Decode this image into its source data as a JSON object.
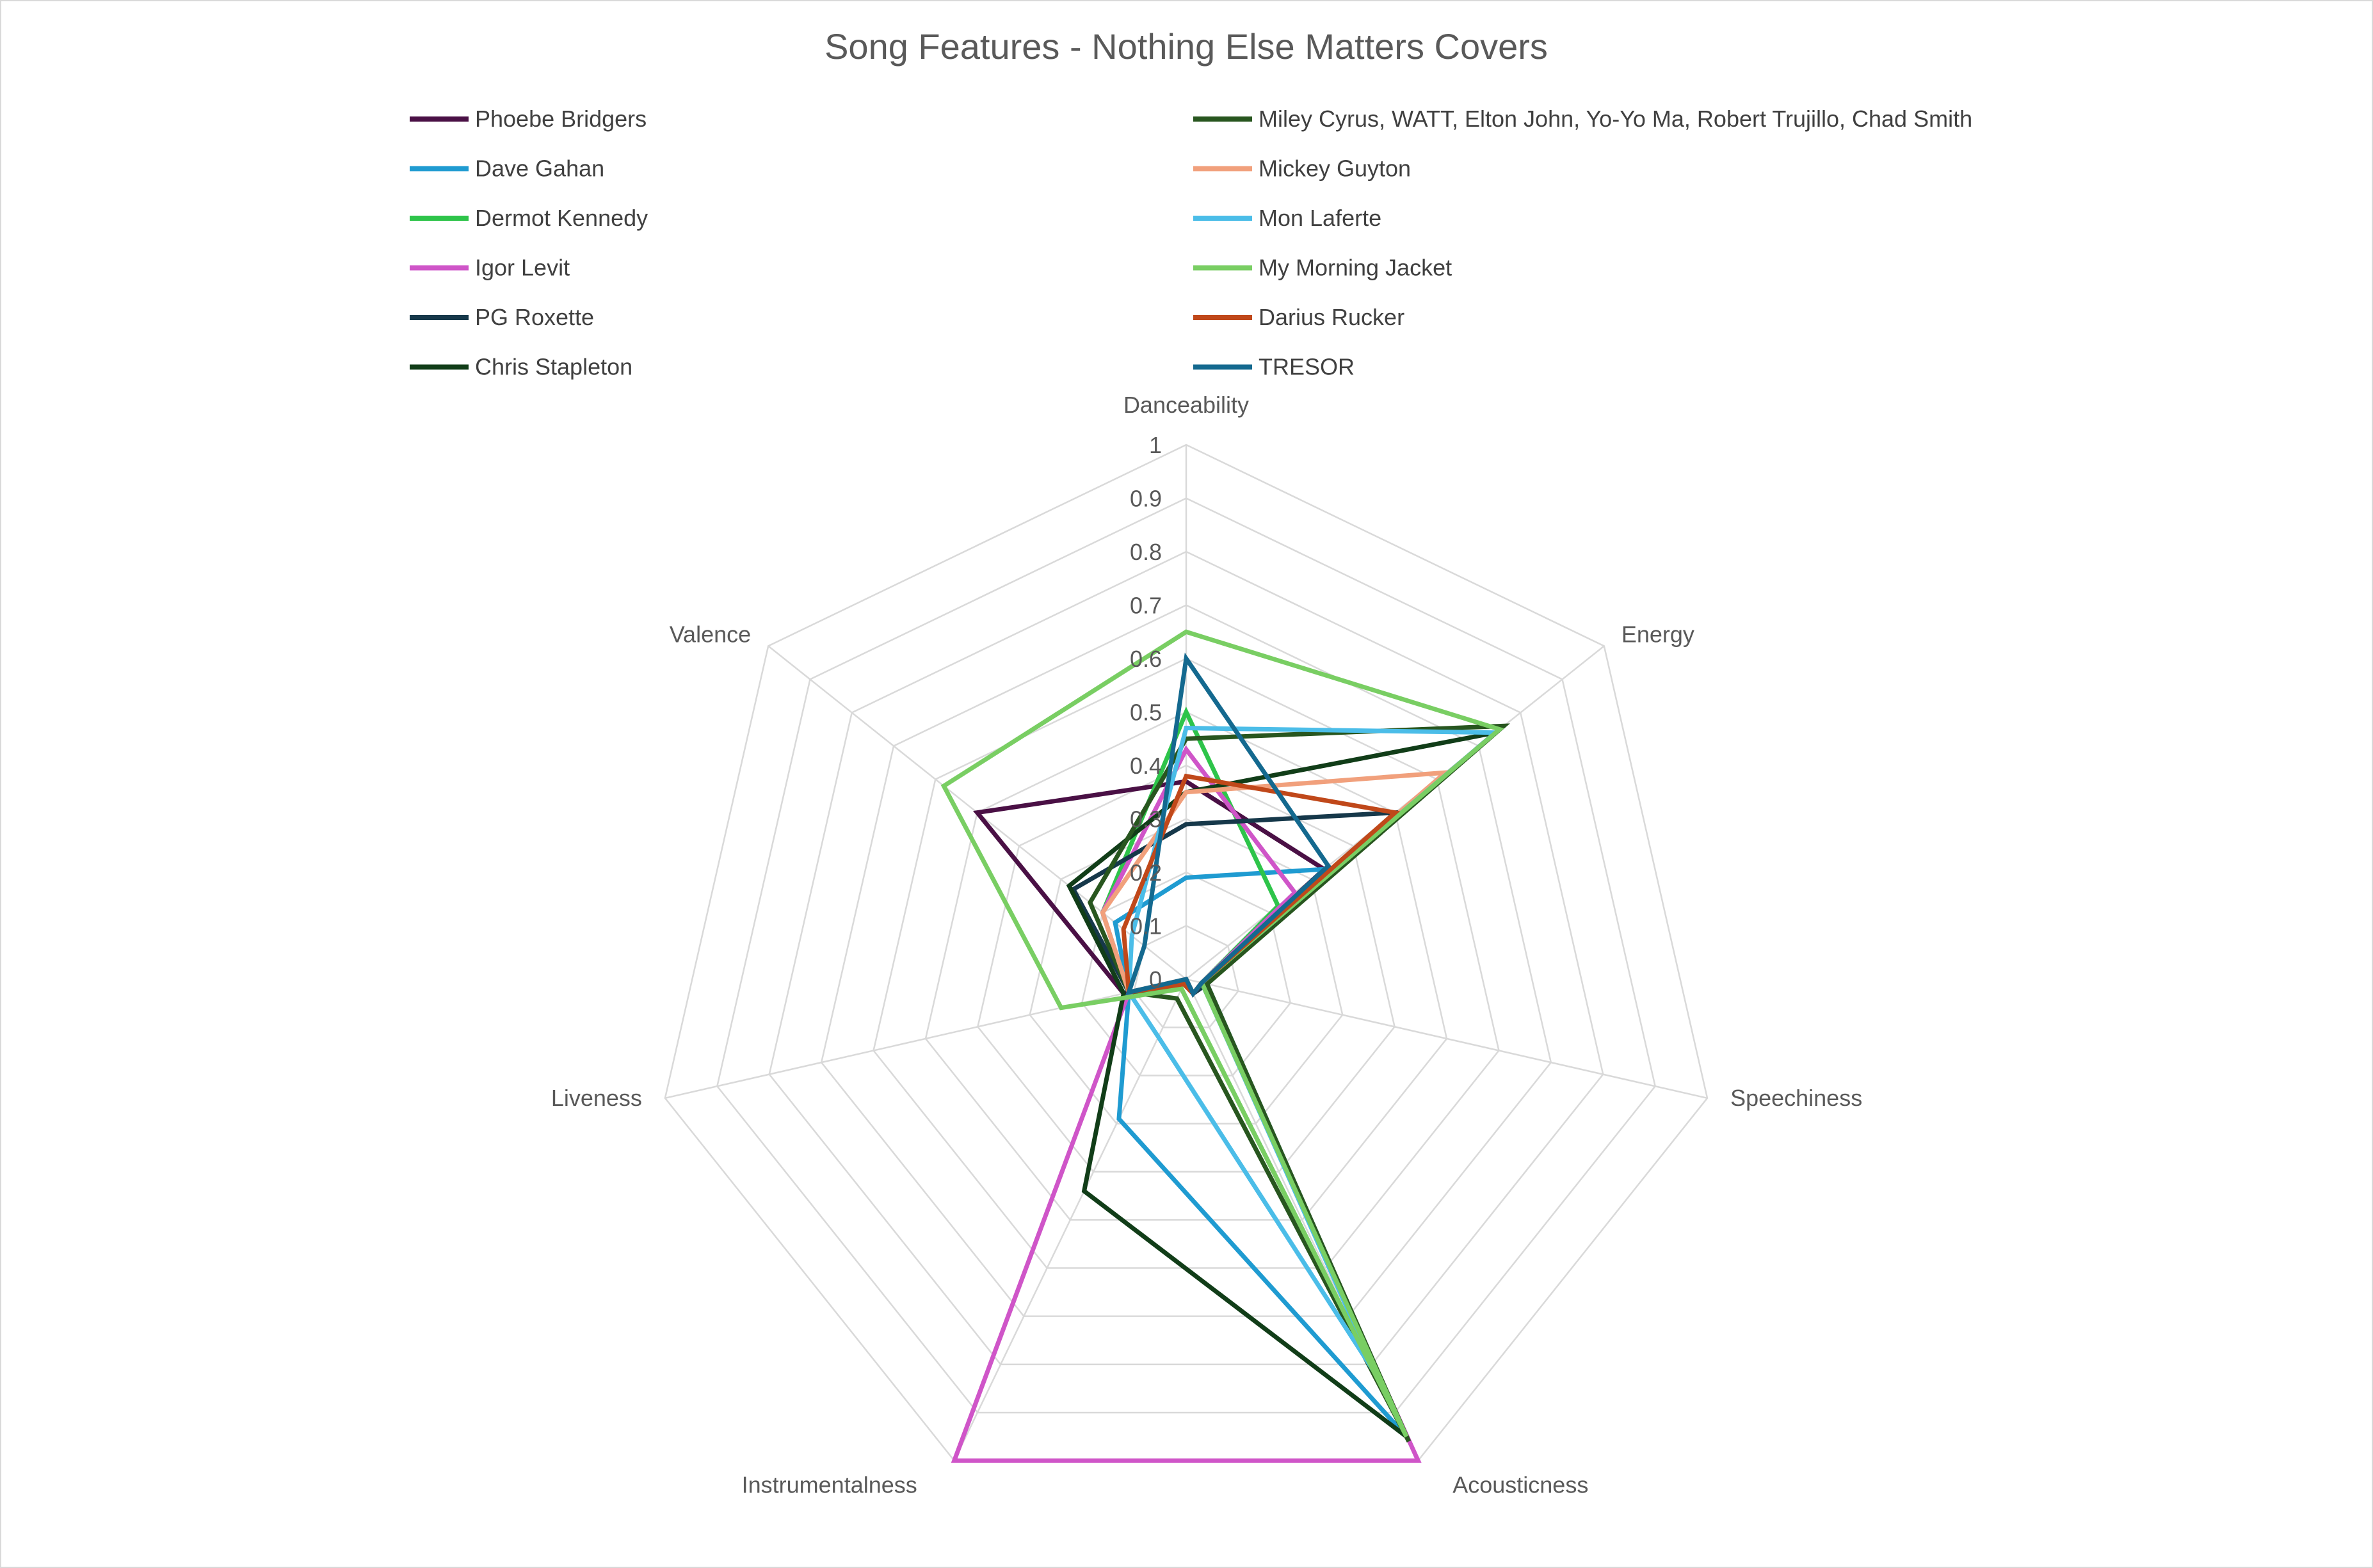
{
  "chart_data": {
    "type": "radar",
    "title": "Song Features - Nothing Else Matters Covers",
    "axes": [
      "Danceability",
      "Energy",
      "Speechiness",
      "Acousticness",
      "Instrumentalness",
      "Liveness",
      "Valence"
    ],
    "ticks": [
      "0",
      "0.1",
      "0.2",
      "0.3",
      "0.4",
      "0.5",
      "0.6",
      "0.7",
      "0.8",
      "0.9",
      "1"
    ],
    "range": [
      0,
      1
    ],
    "legend_position": "top",
    "series": [
      {
        "name": "Phoebe Bridgers",
        "color": "#4a1045",
        "values": [
          0.37,
          0.33,
          0.03,
          0.03,
          0.01,
          0.12,
          0.5
        ]
      },
      {
        "name": "Dave Gahan",
        "color": "#1f9bd1",
        "values": [
          0.19,
          0.33,
          0.04,
          0.95,
          0.29,
          0.11,
          0.17
        ]
      },
      {
        "name": "Dermot Kennedy",
        "color": "#2ec44a",
        "values": [
          0.5,
          0.22,
          0.03,
          0.95,
          0.02,
          0.11,
          0.2
        ]
      },
      {
        "name": "Igor Levit",
        "color": "#cf55c8",
        "values": [
          0.43,
          0.26,
          0.03,
          1.0,
          1.0,
          0.11,
          0.2
        ]
      },
      {
        "name": "PG Roxette",
        "color": "#16384a",
        "values": [
          0.29,
          0.5,
          0.04,
          0.03,
          0.0,
          0.11,
          0.27
        ]
      },
      {
        "name": "Chris Stapleton",
        "color": "#113d18",
        "values": [
          0.35,
          0.74,
          0.03,
          0.95,
          0.44,
          0.12,
          0.28
        ]
      },
      {
        "name": "Miley Cyrus, WATT, Elton John, Yo-Yo Ma, Robert Trujillo, Chad Smith",
        "color": "#28561f",
        "values": [
          0.45,
          0.76,
          0.04,
          0.96,
          0.04,
          0.11,
          0.23
        ]
      },
      {
        "name": "Mickey Guyton",
        "color": "#f1a07c",
        "values": [
          0.35,
          0.62,
          0.03,
          0.03,
          0.0,
          0.11,
          0.2
        ]
      },
      {
        "name": "Mon Laferte",
        "color": "#4bbde8",
        "values": [
          0.47,
          0.74,
          0.03,
          0.83,
          0.12,
          0.11,
          0.13
        ]
      },
      {
        "name": "My Morning Jacket",
        "color": "#79ce63",
        "values": [
          0.65,
          0.75,
          0.03,
          0.95,
          0.02,
          0.24,
          0.58
        ]
      },
      {
        "name": "Darius Rucker",
        "color": "#c0481a",
        "values": [
          0.38,
          0.5,
          0.03,
          0.03,
          0.01,
          0.11,
          0.15
        ]
      },
      {
        "name": "TRESOR",
        "color": "#14698f",
        "values": [
          0.6,
          0.34,
          0.03,
          0.03,
          0.0,
          0.11,
          0.1
        ]
      }
    ]
  }
}
